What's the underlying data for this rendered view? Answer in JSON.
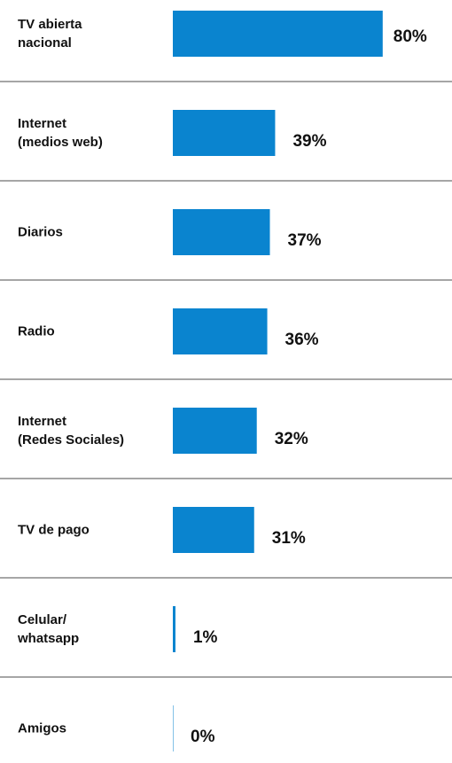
{
  "chart_data": {
    "type": "bar",
    "orientation": "horizontal",
    "categories": [
      "TV abierta\nnacional",
      "Internet\n(medios web)",
      "Diarios",
      "Radio",
      "Internet\n(Redes Sociales)",
      "TV de pago",
      "Celular/\nwhatsapp",
      "Amigos"
    ],
    "values": [
      80,
      39,
      37,
      36,
      32,
      31,
      1,
      0
    ],
    "value_labels": [
      "80%",
      "39%",
      "37%",
      "36%",
      "32%",
      "31%",
      "1%",
      "0%"
    ],
    "color": "#0a84cf"
  }
}
